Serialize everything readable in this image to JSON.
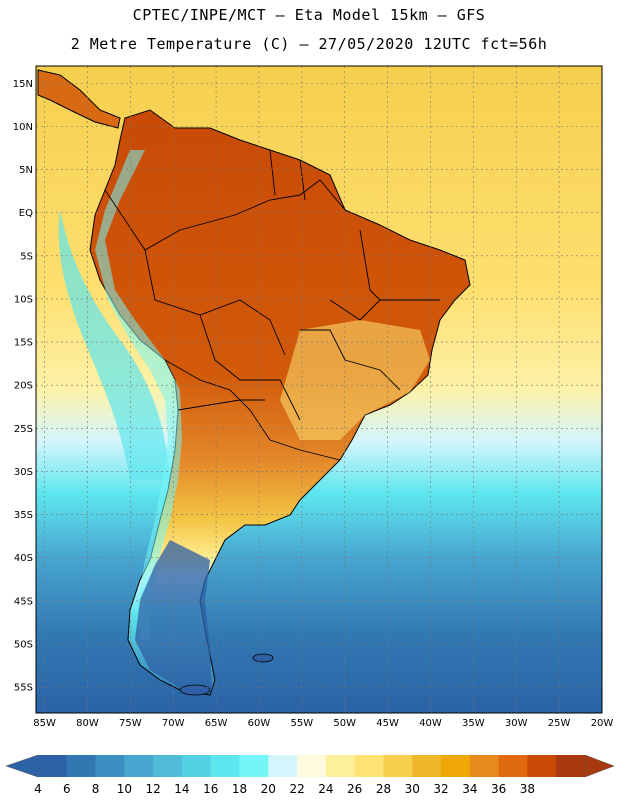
{
  "header": {
    "title_line1": "CPTEC/INPE/MCT –  Eta Model 15km – GFS",
    "title_line2": "2 Metre Temperature (C) – 27/05/2020 12UTC fct=56h"
  },
  "map": {
    "lat_labels": [
      "15N",
      "10N",
      "5N",
      "EQ",
      "5S",
      "10S",
      "15S",
      "20S",
      "25S",
      "30S",
      "35S",
      "40S",
      "45S",
      "50S",
      "55S"
    ],
    "lon_labels": [
      "85W",
      "80W",
      "75W",
      "70W",
      "65W",
      "60W",
      "55W",
      "50W",
      "45W",
      "40W",
      "35W",
      "30W",
      "25W",
      "20W"
    ],
    "lat_range": [
      17,
      -58
    ],
    "lon_range": [
      -86,
      -20
    ],
    "colors": {
      "ocean_cold": "#2e5fa4",
      "ocean_cool": "#4cc4dc",
      "land_hot": "#c84a06",
      "border": "#000000"
    }
  },
  "colorbar": {
    "labels": [
      "4",
      "6",
      "8",
      "10",
      "12",
      "14",
      "16",
      "18",
      "20",
      "22",
      "24",
      "26",
      "28",
      "30",
      "32",
      "34",
      "36",
      "38"
    ],
    "colors": [
      "#2b63a6",
      "#3178b3",
      "#3c8fc3",
      "#47a6cf",
      "#50bcd9",
      "#54d1e4",
      "#5ee6ee",
      "#74f5f6",
      "#d4f5fb",
      "#fefae0",
      "#fdf09a",
      "#fde373",
      "#f6d04c",
      "#eeb72a",
      "#eea707",
      "#e78a1b",
      "#df6a0d",
      "#c84a06",
      "#a8380e"
    ],
    "left_arrow_color": "#2b63a6",
    "right_arrow_color": "#a8380e"
  }
}
